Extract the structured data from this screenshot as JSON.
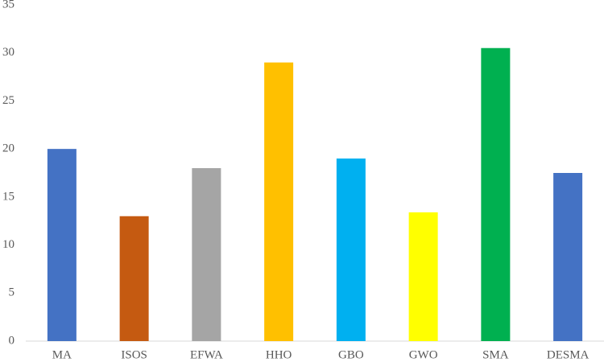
{
  "chart_data": {
    "type": "bar",
    "categories": [
      "MA",
      "ISOS",
      "EFWA",
      "HHO",
      "GBO",
      "GWO",
      "SMA",
      "DESMA"
    ],
    "values": [
      20,
      13,
      18,
      29,
      19,
      13.4,
      30.5,
      17.5
    ],
    "colors": [
      "#4472c4",
      "#c55a11",
      "#a5a5a5",
      "#ffc000",
      "#00b0f0",
      "#ffff00",
      "#00b050",
      "#4472c4"
    ],
    "ylim": [
      0,
      35
    ],
    "yticks": [
      0,
      5,
      10,
      15,
      20,
      25,
      30,
      35
    ],
    "grid": false
  }
}
